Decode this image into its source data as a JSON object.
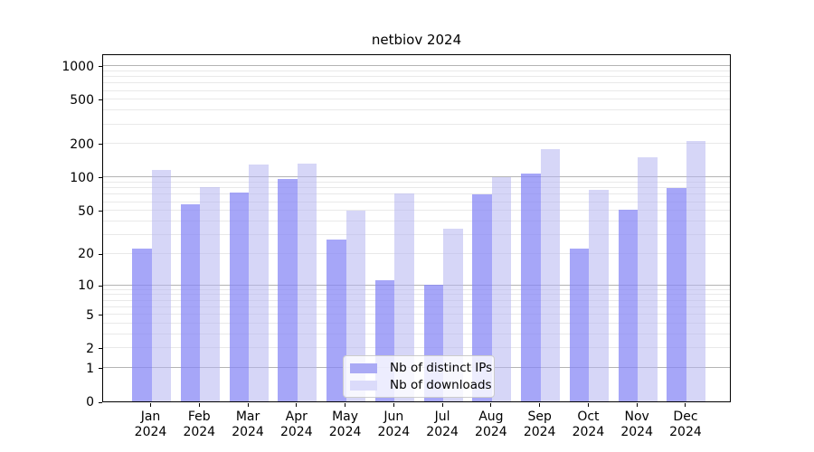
{
  "chart_data": {
    "type": "bar",
    "title": "netbiov 2024",
    "categories": [
      "Jan",
      "Feb",
      "Mar",
      "Apr",
      "May",
      "Jun",
      "Jul",
      "Aug",
      "Sep",
      "Oct",
      "Nov",
      "Dec"
    ],
    "category_year": "2024",
    "series": [
      {
        "name": "Nb of distinct IPs",
        "values": [
          22,
          57,
          72,
          96,
          27,
          11,
          10,
          70,
          108,
          22,
          51,
          79
        ],
        "color": "rgba(133, 133, 245, 0.73)",
        "legend_color": "#aaaaf5"
      },
      {
        "name": "Nb of downloads",
        "values": [
          116,
          82,
          130,
          132,
          50,
          71,
          34,
          100,
          180,
          77,
          152,
          210
        ],
        "color": "rgba(180, 180, 240, 0.55)",
        "legend_color": "#dbdbfa"
      }
    ],
    "y_ticks": [
      0,
      1,
      2,
      5,
      10,
      20,
      50,
      100,
      200,
      500,
      1000
    ],
    "y_scale": "log1p",
    "ylim": [
      0,
      1290
    ],
    "xlabel": "",
    "ylabel": "",
    "grid": true,
    "legend_position": "lower-center-inside",
    "colors": {
      "grid_major": "#b4b4b4",
      "grid_minor": "#e9e9e9",
      "axis": "#000000",
      "text": "#000000",
      "background": "#ffffff"
    }
  }
}
